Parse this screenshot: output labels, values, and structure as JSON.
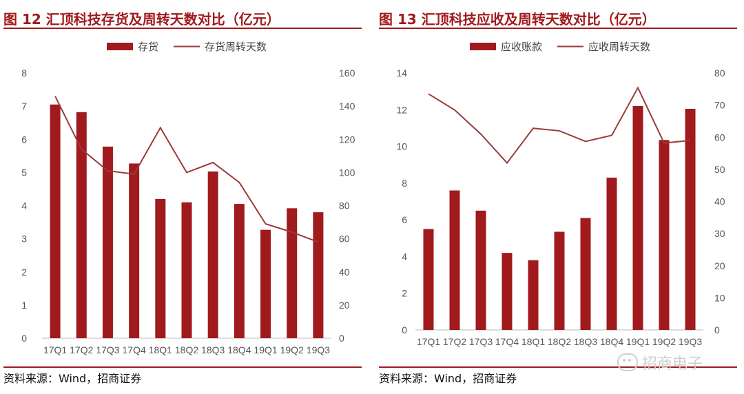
{
  "colors": {
    "accent": "#a01a1e",
    "bar": "#a01a1e",
    "line": "#9b3a3a"
  },
  "chart_data": [
    {
      "type": "bar",
      "title": "图 12  汇顶科技存货及周转天数对比（亿元）",
      "source": "资料来源：Wind，招商证券",
      "categories": [
        "17Q1",
        "17Q2",
        "17Q3",
        "17Q4",
        "18Q1",
        "18Q2",
        "18Q3",
        "18Q4",
        "19Q1",
        "19Q2",
        "19Q3"
      ],
      "series": [
        {
          "name": "存货",
          "type": "bar",
          "axis": "left",
          "values": [
            7.05,
            6.82,
            5.78,
            5.27,
            4.2,
            4.1,
            5.03,
            4.05,
            3.27,
            3.92,
            3.8
          ]
        },
        {
          "name": "存货周转天数",
          "type": "line",
          "axis": "right",
          "values": [
            146,
            114,
            101,
            99,
            127,
            100,
            106,
            94,
            69,
            64,
            58
          ]
        }
      ],
      "ylim_left": [
        0,
        8
      ],
      "yticks_left": [
        "0",
        "1",
        "2",
        "3",
        "4",
        "5",
        "6",
        "7",
        "8"
      ],
      "ylim_right": [
        0,
        160
      ],
      "yticks_right": [
        "0",
        "20",
        "40",
        "60",
        "80",
        "100",
        "120",
        "140",
        "160"
      ],
      "legend_position": "top-center",
      "grid": false
    },
    {
      "type": "bar",
      "title": "图 13  汇顶科技应收及周转天数对比（亿元）",
      "source": "资料来源：Wind，招商证券",
      "categories": [
        "17Q1",
        "17Q2",
        "17Q3",
        "17Q4",
        "18Q1",
        "18Q2",
        "18Q3",
        "18Q4",
        "19Q1",
        "19Q2",
        "19Q3"
      ],
      "series": [
        {
          "name": "应收账款",
          "type": "bar",
          "axis": "left",
          "values": [
            5.5,
            7.6,
            6.5,
            4.2,
            3.8,
            5.35,
            6.1,
            8.3,
            12.2,
            10.35,
            12.05
          ]
        },
        {
          "name": "应收周转天数",
          "type": "line",
          "axis": "right",
          "values": [
            73.5,
            68.5,
            61,
            52,
            62.8,
            62,
            58.7,
            60.6,
            75.4,
            58.2,
            59
          ]
        }
      ],
      "ylim_left": [
        0,
        14
      ],
      "yticks_left": [
        "0",
        "2",
        "4",
        "6",
        "8",
        "10",
        "12",
        "14"
      ],
      "ylim_right": [
        0,
        80
      ],
      "yticks_right": [
        "0",
        "10",
        "20",
        "30",
        "40",
        "50",
        "60",
        "70",
        "80"
      ],
      "legend_position": "top-center",
      "grid": false
    }
  ],
  "watermark": {
    "text": "招商电子"
  }
}
